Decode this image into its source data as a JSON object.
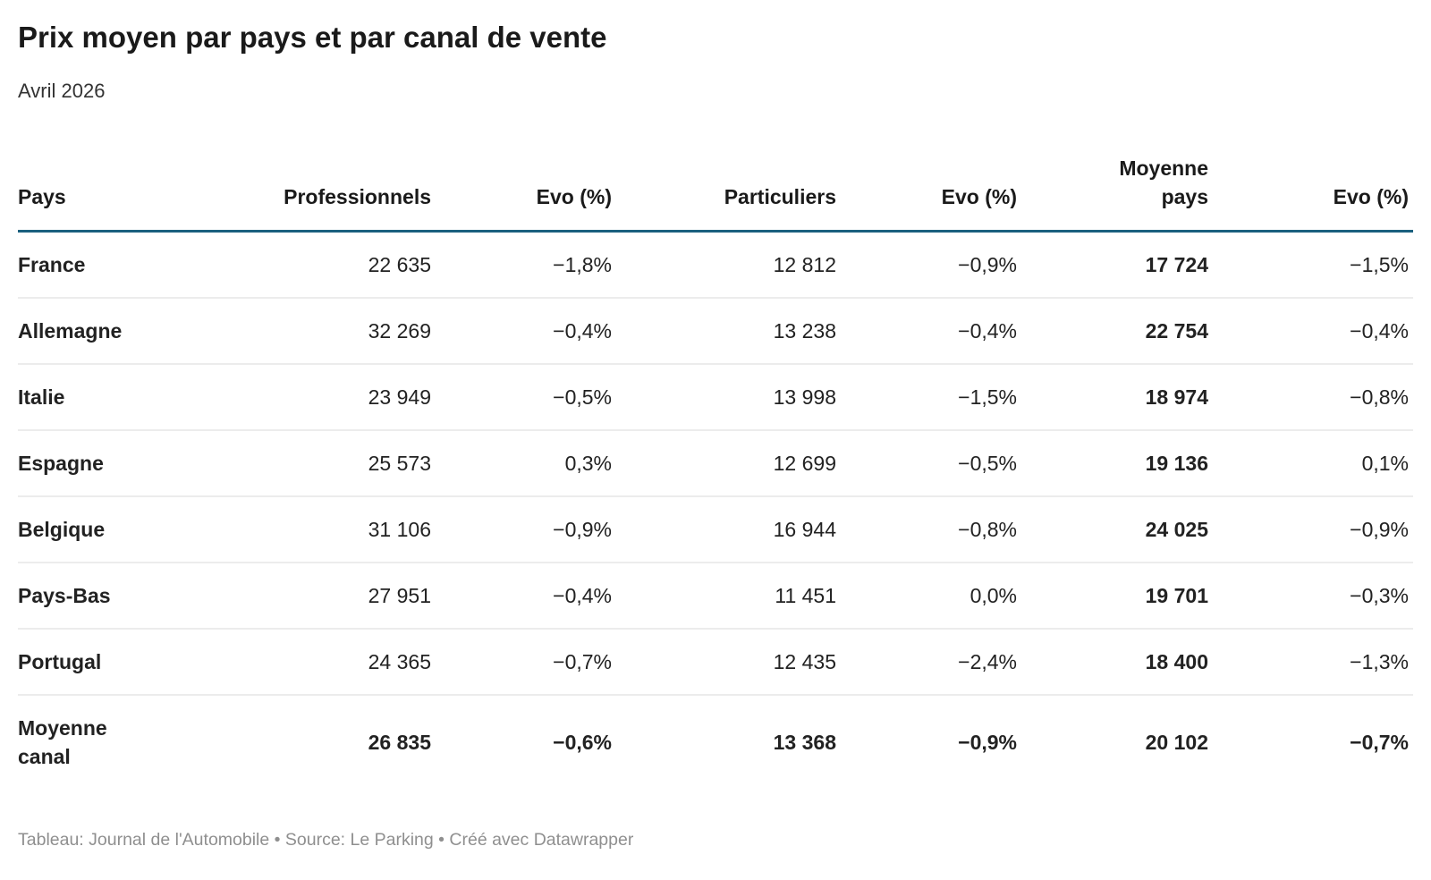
{
  "page": {
    "title": "Prix moyen par pays et par canal de vente",
    "subtitle": "Avril 2026",
    "footer": "Tableau: Journal de l'Automobile • Source: Le Parking • Créé avec Datawrapper"
  },
  "colors": {
    "title_text": "#1a1a1a",
    "subtitle_text": "#333333",
    "text": "#222222",
    "header_rule": "#1a607e",
    "row_divider": "#ececec",
    "footer_text": "#8f8f8f"
  },
  "chart_data": {
    "type": "table",
    "title": "Prix moyen par pays et par canal de vente",
    "subtitle": "Avril 2026",
    "columns": [
      "Pays",
      "Professionnels",
      "Evo (%)",
      "Particuliers",
      "Evo (%)",
      "Moyenne pays",
      "Evo (%)"
    ],
    "column_alignment": [
      "left",
      "right",
      "right",
      "right",
      "right",
      "right",
      "right"
    ],
    "rows": [
      {
        "is_total": false,
        "cells": [
          "France",
          "22 635",
          "−1,8%",
          "12 812",
          "−0,9%",
          "17 724",
          "−1,5%"
        ]
      },
      {
        "is_total": false,
        "cells": [
          "Allemagne",
          "32 269",
          "−0,4%",
          "13 238",
          "−0,4%",
          "22 754",
          "−0,4%"
        ]
      },
      {
        "is_total": false,
        "cells": [
          "Italie",
          "23 949",
          "−0,5%",
          "13 998",
          "−1,5%",
          "18 974",
          "−0,8%"
        ]
      },
      {
        "is_total": false,
        "cells": [
          "Espagne",
          "25 573",
          "0,3%",
          "12 699",
          "−0,5%",
          "19 136",
          "0,1%"
        ]
      },
      {
        "is_total": false,
        "cells": [
          "Belgique",
          "31 106",
          "−0,9%",
          "16 944",
          "−0,8%",
          "24 025",
          "−0,9%"
        ]
      },
      {
        "is_total": false,
        "cells": [
          "Pays-Bas",
          "27 951",
          "−0,4%",
          "11 451",
          "0,0%",
          "19 701",
          "−0,3%"
        ]
      },
      {
        "is_total": false,
        "cells": [
          "Portugal",
          "24 365",
          "−0,7%",
          "12 435",
          "−2,4%",
          "18 400",
          "−1,3%"
        ]
      },
      {
        "is_total": true,
        "cells": [
          "Moyenne canal",
          "26 835",
          "−0,6%",
          "13 368",
          "−0,9%",
          "20 102",
          "−0,7%"
        ]
      }
    ],
    "notes": "Tableau: Journal de l'Automobile • Source: Le Parking • Créé avec Datawrapper",
    "styling": {
      "bold_columns": [
        "Pays",
        "Moyenne pays"
      ],
      "bold_rows": [
        "Moyenne canal"
      ]
    }
  }
}
